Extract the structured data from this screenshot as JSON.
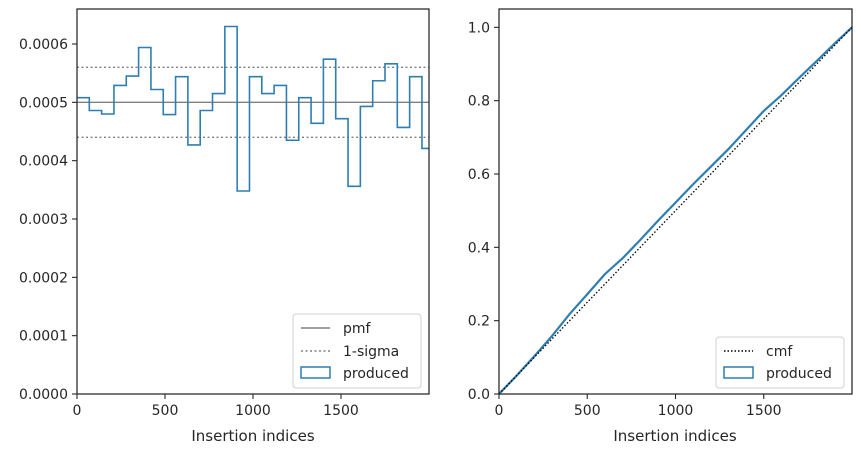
{
  "chart_data": [
    {
      "type": "line",
      "xlabel": "Insertion indices",
      "ylabel": "",
      "xlim": [
        0,
        2000
      ],
      "ylim": [
        0,
        0.00066
      ],
      "xticks": [
        0,
        500,
        1000,
        1500
      ],
      "xtick_labels": [
        "0",
        "500",
        "1000",
        "1500"
      ],
      "yticks": [
        0,
        0.0001,
        0.0002,
        0.0003,
        0.0004,
        0.0005,
        0.0006
      ],
      "ytick_labels": [
        "0.0000",
        "0.0001",
        "0.0002",
        "0.0003",
        "0.0004",
        "0.0005",
        "0.0006"
      ],
      "grid": false,
      "legend_position": "lower-right",
      "pmf": {
        "name": "pmf",
        "value": 0.0005,
        "color": "#808080"
      },
      "sigma": {
        "name": "1-sigma",
        "values": [
          0.00044,
          0.00056
        ],
        "color": "#808080"
      },
      "histogram": {
        "name": "produced",
        "color": "#2e7fb0",
        "bin_edges": [
          0,
          70,
          140,
          210,
          280,
          350,
          420,
          490,
          560,
          630,
          700,
          770,
          840,
          910,
          980,
          1050,
          1120,
          1190,
          1260,
          1330,
          1400,
          1470,
          1540,
          1610,
          1680,
          1750,
          1820,
          1890,
          1960,
          2000
        ],
        "values": [
          0.000508,
          0.000486,
          0.00048,
          0.000529,
          0.000545,
          0.000594,
          0.000522,
          0.000479,
          0.000544,
          0.000427,
          0.000486,
          0.000515,
          0.00063,
          0.000348,
          0.000544,
          0.000515,
          0.000529,
          0.000435,
          0.000508,
          0.000464,
          0.000574,
          0.000472,
          0.000356,
          0.000493,
          0.000537,
          0.000566,
          0.000457,
          0.000544,
          0.000421
        ]
      }
    },
    {
      "type": "line",
      "xlabel": "Insertion indices",
      "ylabel": "",
      "xlim": [
        0,
        2000
      ],
      "ylim": [
        0,
        1.05
      ],
      "xticks": [
        0,
        500,
        1000,
        1500
      ],
      "xtick_labels": [
        "0",
        "500",
        "1000",
        "1500"
      ],
      "yticks": [
        0,
        0.2,
        0.4,
        0.6,
        0.8,
        1.0
      ],
      "ytick_labels": [
        "0.0",
        "0.2",
        "0.4",
        "0.6",
        "0.8",
        "1.0"
      ],
      "grid": false,
      "legend_position": "lower-right",
      "cmf": {
        "name": "cmf",
        "x": [
          0,
          2000
        ],
        "values": [
          0,
          1.0
        ],
        "color": "#000000"
      },
      "produced": {
        "name": "produced",
        "color": "#2e7fb0",
        "x": [
          0,
          100,
          200,
          300,
          400,
          500,
          600,
          700,
          800,
          900,
          1000,
          1100,
          1200,
          1300,
          1400,
          1500,
          1600,
          1700,
          1800,
          1900,
          2000
        ],
        "values": [
          0,
          0.05,
          0.103,
          0.158,
          0.218,
          0.272,
          0.327,
          0.37,
          0.42,
          0.472,
          0.522,
          0.572,
          0.62,
          0.668,
          0.72,
          0.772,
          0.815,
          0.862,
          0.908,
          0.955,
          1.0
        ]
      }
    }
  ]
}
